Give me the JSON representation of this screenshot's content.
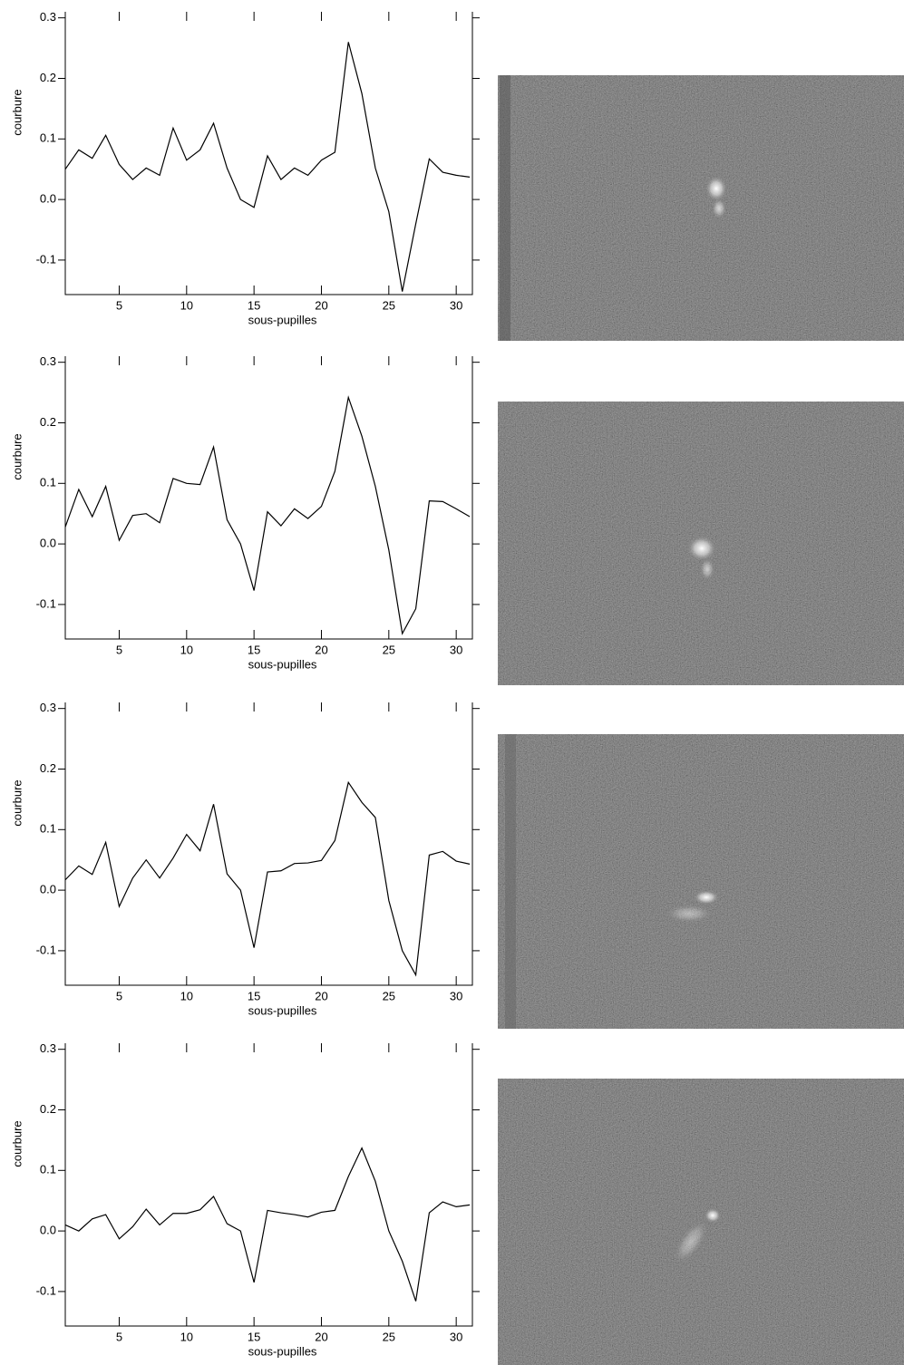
{
  "chart_data": [
    {
      "type": "line",
      "xlabel": "sous-pupilles",
      "ylabel": "courbure",
      "color": "#000000",
      "x": [
        1,
        2,
        3,
        4,
        5,
        6,
        7,
        8,
        9,
        10,
        11,
        12,
        13,
        14,
        15,
        16,
        17,
        18,
        19,
        20,
        21,
        22,
        23,
        24,
        25,
        26,
        27,
        28,
        29,
        30,
        31
      ],
      "values": [
        0.05,
        0.082,
        0.068,
        0.106,
        0.058,
        0.033,
        0.052,
        0.04,
        0.118,
        0.065,
        0.082,
        0.126,
        0.052,
        0.0,
        -0.013,
        0.072,
        0.033,
        0.052,
        0.04,
        0.065,
        0.078,
        0.26,
        0.175,
        0.052,
        -0.02,
        -0.152,
        -0.04,
        0.067,
        0.045,
        0.04,
        0.037
      ],
      "xlim": [
        1,
        31.2
      ],
      "ylim": [
        -0.157,
        0.31
      ],
      "xticks": [
        5,
        10,
        15,
        20,
        25,
        30
      ],
      "yticks": [
        -0.1,
        {
          "value": 0,
          "label": "0.0"
        },
        0.1,
        0.2,
        0.3
      ]
    },
    {
      "type": "line",
      "xlabel": "sous-pupilles",
      "ylabel": "courbure",
      "color": "#000000",
      "x": [
        1,
        2,
        3,
        4,
        5,
        6,
        7,
        8,
        9,
        10,
        11,
        12,
        13,
        14,
        15,
        16,
        17,
        18,
        19,
        20,
        21,
        22,
        23,
        24,
        25,
        26,
        27,
        28,
        29,
        30,
        31
      ],
      "values": [
        0.028,
        0.09,
        0.045,
        0.095,
        0.006,
        0.047,
        0.05,
        0.035,
        0.108,
        0.1,
        0.098,
        0.16,
        0.04,
        0.0,
        -0.077,
        0.053,
        0.03,
        0.058,
        0.042,
        0.062,
        0.12,
        0.242,
        0.178,
        0.095,
        -0.01,
        -0.148,
        -0.107,
        0.071,
        0.07,
        0.058,
        0.045
      ],
      "xlim": [
        1,
        31.2
      ],
      "ylim": [
        -0.157,
        0.31
      ],
      "xticks": [
        5,
        10,
        15,
        20,
        25,
        30
      ],
      "yticks": [
        -0.1,
        {
          "value": 0,
          "label": "0.0"
        },
        0.1,
        0.2,
        0.3
      ]
    },
    {
      "type": "line",
      "xlabel": "sous-pupilles",
      "ylabel": "courbure",
      "color": "#000000",
      "x": [
        1,
        2,
        3,
        4,
        5,
        6,
        7,
        8,
        9,
        10,
        11,
        12,
        13,
        14,
        15,
        16,
        17,
        18,
        19,
        20,
        21,
        22,
        23,
        24,
        25,
        26,
        27,
        28,
        29,
        30,
        31
      ],
      "values": [
        0.017,
        0.04,
        0.026,
        0.079,
        -0.027,
        0.02,
        0.05,
        0.02,
        0.053,
        0.092,
        0.065,
        0.142,
        0.027,
        0.0,
        -0.095,
        0.03,
        0.032,
        0.044,
        0.045,
        0.049,
        0.082,
        0.178,
        0.145,
        0.12,
        -0.017,
        -0.1,
        -0.14,
        0.058,
        0.064,
        0.048,
        0.043
      ],
      "xlim": [
        1,
        31.2
      ],
      "ylim": [
        -0.157,
        0.31
      ],
      "xticks": [
        5,
        10,
        15,
        20,
        25,
        30
      ],
      "yticks": [
        -0.1,
        {
          "value": 0,
          "label": "0.0"
        },
        0.1,
        0.2,
        0.3
      ]
    },
    {
      "type": "line",
      "xlabel": "sous-pupilles",
      "ylabel": "courbure",
      "color": "#000000",
      "x": [
        1,
        2,
        3,
        4,
        5,
        6,
        7,
        8,
        9,
        10,
        11,
        12,
        13,
        14,
        15,
        16,
        17,
        18,
        19,
        20,
        21,
        22,
        23,
        24,
        25,
        26,
        27,
        28,
        29,
        30,
        31
      ],
      "values": [
        0.01,
        0.0,
        0.02,
        0.027,
        -0.013,
        0.007,
        0.036,
        0.01,
        0.029,
        0.029,
        0.035,
        0.057,
        0.012,
        0.0,
        -0.085,
        0.034,
        0.03,
        0.027,
        0.023,
        0.031,
        0.034,
        0.09,
        0.137,
        0.082,
        0.0,
        -0.05,
        -0.116,
        0.03,
        0.048,
        0.04,
        0.043
      ],
      "xlim": [
        1,
        31.2
      ],
      "ylim": [
        -0.157,
        0.31
      ],
      "xticks": [
        5,
        10,
        15,
        20,
        25,
        30
      ],
      "yticks": [
        -0.1,
        {
          "value": 0,
          "label": "0.0"
        },
        0.1,
        0.2,
        0.3
      ]
    }
  ]
}
